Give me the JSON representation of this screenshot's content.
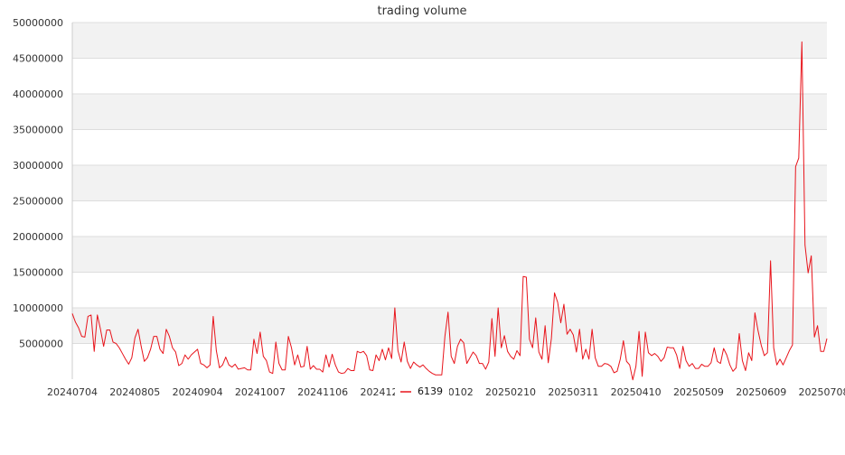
{
  "chart_data": {
    "type": "line",
    "title": "trading volume",
    "xlabel": "",
    "ylabel": "",
    "ylim": [
      0,
      50000000
    ],
    "y_ticks": [
      5000000,
      10000000,
      15000000,
      20000000,
      25000000,
      30000000,
      35000000,
      40000000,
      45000000,
      50000000
    ],
    "x_tick_labels": [
      "20240704",
      "20240805",
      "20240904",
      "20241007",
      "20241106",
      "20241206",
      "20250102",
      "20250210",
      "20250311",
      "20250410",
      "20250509",
      "20250609",
      "20250708"
    ],
    "x_tick_indices": [
      0,
      20,
      40,
      60,
      80,
      100,
      120,
      140,
      160,
      180,
      200,
      220,
      240
    ],
    "grid": true,
    "legend_position": "bottom-center",
    "series": [
      {
        "name": "6139",
        "color": "#e8141b",
        "values": [
          9200000,
          8000000,
          7200000,
          6000000,
          5900000,
          8800000,
          9000000,
          3900000,
          9000000,
          7000000,
          4600000,
          6900000,
          6900000,
          5200000,
          5000000,
          4400000,
          3600000,
          2800000,
          2100000,
          3000000,
          5800000,
          7000000,
          4600000,
          2500000,
          3000000,
          4200000,
          6000000,
          6000000,
          4200000,
          3600000,
          7000000,
          6000000,
          4400000,
          3800000,
          1900000,
          2200000,
          3400000,
          2800000,
          3400000,
          3800000,
          4200000,
          2200000,
          2000000,
          1600000,
          2000000,
          8800000,
          4000000,
          1600000,
          2000000,
          3100000,
          2000000,
          1700000,
          2100000,
          1400000,
          1500000,
          1600000,
          1300000,
          1300000,
          5600000,
          3600000,
          6600000,
          3200000,
          2600000,
          1000000,
          800000,
          5200000,
          2200000,
          1300000,
          1300000,
          6000000,
          4400000,
          2000000,
          3400000,
          1700000,
          1800000,
          4600000,
          1400000,
          1900000,
          1400000,
          1400000,
          1000000,
          3400000,
          1700000,
          3500000,
          2000000,
          1000000,
          800000,
          900000,
          1500000,
          1200000,
          1200000,
          3900000,
          3700000,
          3900000,
          3300000,
          1300000,
          1200000,
          3400000,
          2600000,
          4200000,
          2700000,
          4400000,
          2900000,
          10000000,
          4000000,
          2400000,
          5200000,
          2500000,
          1500000,
          2400000,
          2000000,
          1700000,
          2000000,
          1500000,
          1100000,
          800000,
          600000,
          600000,
          600000,
          6000000,
          9400000,
          3200000,
          2200000,
          4600000,
          5600000,
          5100000,
          2200000,
          3000000,
          3800000,
          3300000,
          2200000,
          2200000,
          1400000,
          2400000,
          8500000,
          3200000,
          10000000,
          4400000,
          6100000,
          3900000,
          3200000,
          2800000,
          4000000,
          3300000,
          14400000,
          14300000,
          5600000,
          4400000,
          8600000,
          3800000,
          2800000,
          7500000,
          2300000,
          5700000,
          12100000,
          10800000,
          7900000,
          10500000,
          6300000,
          7000000,
          6200000,
          3800000,
          7000000,
          2800000,
          4200000,
          2800000,
          7000000,
          3000000,
          1800000,
          1800000,
          2200000,
          2100000,
          1800000,
          900000,
          1100000,
          2800000,
          5400000,
          2500000,
          2000000,
          -100000,
          1800000,
          6700000,
          400000,
          6600000,
          3700000,
          3300000,
          3600000,
          3200000,
          2500000,
          3000000,
          4500000,
          4400000,
          4400000,
          3400000,
          1500000,
          4600000,
          2600000,
          1800000,
          2200000,
          1500000,
          1500000,
          2100000,
          1800000,
          1800000,
          2300000,
          4400000,
          2500000,
          2200000,
          4300000,
          3400000,
          2000000,
          1100000,
          1600000,
          6400000,
          2600000,
          1200000,
          3700000,
          2600000,
          9300000,
          6800000,
          4800000,
          3300000,
          3700000,
          16600000,
          4400000,
          2000000,
          2800000,
          2000000,
          3000000,
          4000000,
          4800000,
          29800000,
          31000000,
          47300000,
          18800000,
          14900000,
          17300000,
          5900000,
          7500000,
          3900000,
          3900000,
          5700000
        ]
      }
    ]
  }
}
